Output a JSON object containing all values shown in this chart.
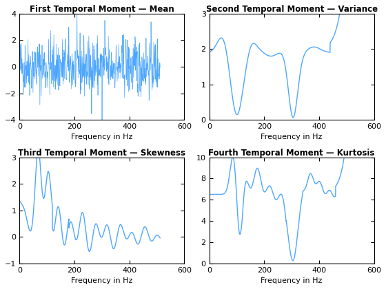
{
  "title1": "First Temporal Moment — Mean",
  "title2": "Second Temporal Moment — Variance",
  "title3": "Third Temporal Moment — Skewness",
  "title4": "Fourth Temporal Moment — Kurtosis",
  "xlabel": "Frequency in Hz",
  "line_color": "#4da6ff",
  "figsize": [
    5.6,
    4.2
  ],
  "dpi": 100,
  "freq_max": 512,
  "ylim1": [
    -4,
    4
  ],
  "ylim2": [
    0,
    3
  ],
  "ylim3": [
    -1,
    3
  ],
  "ylim4": [
    0,
    10
  ]
}
